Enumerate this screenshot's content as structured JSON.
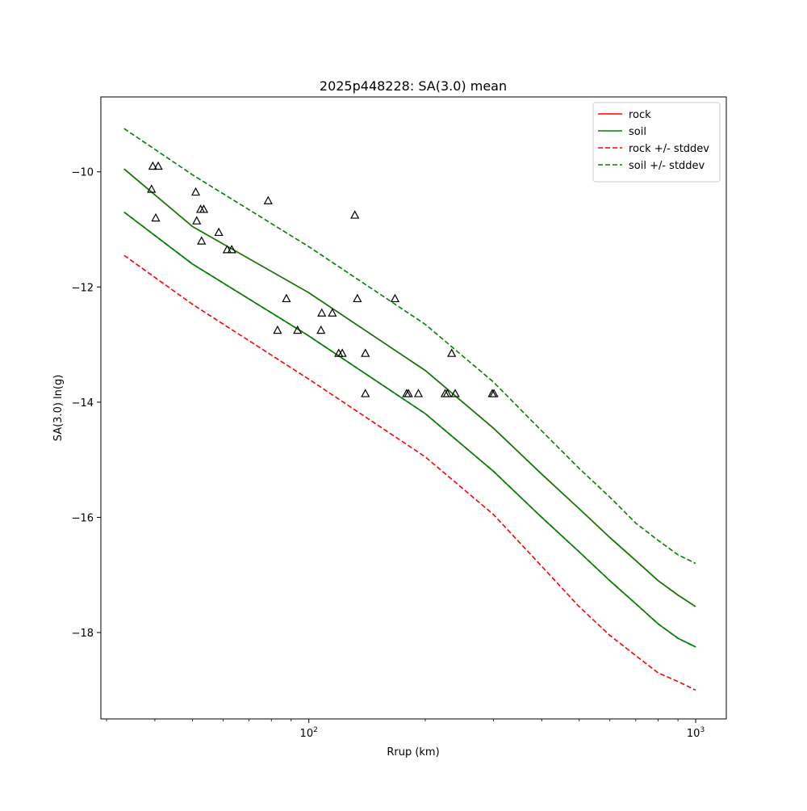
{
  "chart_data": {
    "type": "line",
    "title": "2025p448228: SA(3.0) mean",
    "xlabel": "Rrup (km)",
    "ylabel": "SA(3.0) ln(g)",
    "xscale": "log",
    "xlim": [
      29,
      1200
    ],
    "ylim": [
      -19.5,
      -8.7
    ],
    "x_tick_base": "10",
    "x_ticks": [
      {
        "value": 100,
        "exponent": "2"
      },
      {
        "value": 1000,
        "exponent": "3"
      }
    ],
    "x_minor_ticks": [
      30,
      40,
      50,
      60,
      70,
      80,
      90,
      200,
      300,
      400,
      500,
      600,
      700,
      800,
      900
    ],
    "y_ticks": [
      {
        "value": -18,
        "label": "−18"
      },
      {
        "value": -16,
        "label": "−16"
      },
      {
        "value": -14,
        "label": "−14"
      },
      {
        "value": -12,
        "label": "−12"
      },
      {
        "value": -10,
        "label": "−10"
      }
    ],
    "grid": false,
    "legend_position": "top-right",
    "x": [
      33.3,
      50,
      100,
      200,
      300,
      400,
      500,
      600,
      700,
      800,
      900,
      1000
    ],
    "series": [
      {
        "name": "rock",
        "color": "#ff0000",
        "dash": "solid",
        "values": [
          -9.95,
          -10.95,
          -12.1,
          -13.45,
          -14.45,
          -15.25,
          -15.85,
          -16.35,
          -16.75,
          -17.1,
          -17.35,
          -17.55
        ]
      },
      {
        "name": "soil",
        "color": "#008000",
        "dash": "solid",
        "values": [
          -9.95,
          -10.95,
          -12.1,
          -13.45,
          -14.45,
          -15.25,
          -15.85,
          -16.35,
          -16.75,
          -17.1,
          -17.35,
          -17.55
        ]
      },
      {
        "name": "rock +/- stddev",
        "color": "#ff0000",
        "dash": "dashed",
        "values": [
          -11.45,
          -12.3,
          -13.6,
          -14.95,
          -15.95,
          -16.85,
          -17.55,
          -18.05,
          -18.4,
          -18.7,
          -18.85,
          -19.0
        ]
      },
      {
        "name": "soil +/- stddev",
        "color": "#008000",
        "dash": "dashed",
        "values": [
          -9.25,
          -10.05,
          -11.3,
          -12.65,
          -13.65,
          -14.5,
          -15.15,
          -15.65,
          -16.1,
          -16.4,
          -16.65,
          -16.8
        ]
      },
      {
        "name": "",
        "color": "#ff0000",
        "dash": "dashed",
        "values": [
          -10.7,
          -11.6,
          -12.85,
          -14.2,
          -15.2,
          -16.0,
          -16.6,
          -17.1,
          -17.5,
          -17.85,
          -18.1,
          -18.25
        ]
      },
      {
        "name": "",
        "color": "#008000",
        "dash": "dashed",
        "values": [
          -10.7,
          -11.6,
          -12.85,
          -14.2,
          -15.2,
          -16.0,
          -16.6,
          -17.1,
          -17.5,
          -17.85,
          -18.1,
          -18.25
        ]
      },
      {
        "name": "",
        "color": "#008000",
        "dash": "solid",
        "values": [
          -10.7,
          -11.6,
          -12.85,
          -14.2,
          -15.2,
          -16.0,
          -16.6,
          -17.1,
          -17.5,
          -17.85,
          -18.1,
          -18.25
        ]
      }
    ],
    "observations": {
      "marker": "triangle",
      "color": "#000000",
      "points": [
        {
          "x": 39.5,
          "y": -9.9
        },
        {
          "x": 40.8,
          "y": -9.9
        },
        {
          "x": 39.2,
          "y": -10.3
        },
        {
          "x": 40.2,
          "y": -10.8
        },
        {
          "x": 51.0,
          "y": -10.35
        },
        {
          "x": 51.3,
          "y": -10.85
        },
        {
          "x": 52.5,
          "y": -10.65
        },
        {
          "x": 53.5,
          "y": -10.65
        },
        {
          "x": 52.8,
          "y": -11.2
        },
        {
          "x": 58.5,
          "y": -11.05
        },
        {
          "x": 61.5,
          "y": -11.35
        },
        {
          "x": 63.2,
          "y": -11.35
        },
        {
          "x": 78.5,
          "y": -10.5
        },
        {
          "x": 83.0,
          "y": -12.75
        },
        {
          "x": 87.5,
          "y": -12.2
        },
        {
          "x": 93.5,
          "y": -12.75
        },
        {
          "x": 108.0,
          "y": -12.45
        },
        {
          "x": 107.5,
          "y": -12.75
        },
        {
          "x": 115.0,
          "y": -12.45
        },
        {
          "x": 119.5,
          "y": -13.15
        },
        {
          "x": 122.0,
          "y": -13.15
        },
        {
          "x": 131.5,
          "y": -10.75
        },
        {
          "x": 133.5,
          "y": -12.2
        },
        {
          "x": 140.0,
          "y": -13.15
        },
        {
          "x": 140.0,
          "y": -13.85
        },
        {
          "x": 167.0,
          "y": -12.2
        },
        {
          "x": 179.0,
          "y": -13.85
        },
        {
          "x": 181.0,
          "y": -13.85
        },
        {
          "x": 192.0,
          "y": -13.85
        },
        {
          "x": 225.0,
          "y": -13.85
        },
        {
          "x": 228.0,
          "y": -13.85
        },
        {
          "x": 234.0,
          "y": -13.15
        },
        {
          "x": 239.0,
          "y": -13.85
        },
        {
          "x": 298.0,
          "y": -13.85
        },
        {
          "x": 301.0,
          "y": -13.85
        }
      ]
    }
  }
}
